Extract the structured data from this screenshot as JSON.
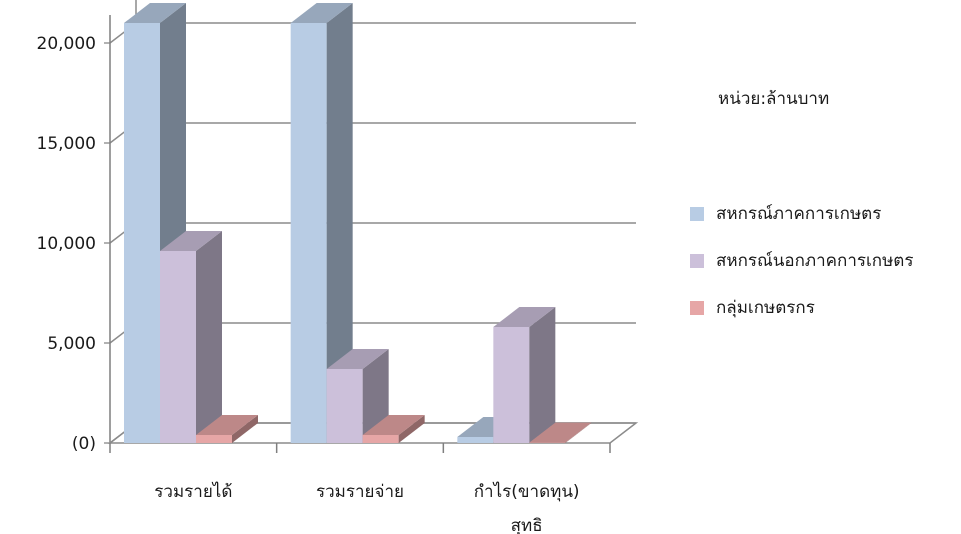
{
  "chart_data": {
    "type": "bar",
    "categories": [
      "รวมรายได้",
      "รวมรายจ่าย",
      "กำไร(ขาดทุน)\nสุทธิ"
    ],
    "series": [
      {
        "name": "สหกรณ์ภาคการเกษตร",
        "values": [
          21000,
          21000,
          300
        ],
        "color": "#b8cce4"
      },
      {
        "name": "สหกรณ์นอกภาคการเกษตร",
        "values": [
          9600,
          3700,
          5800
        ],
        "color": "#ccc0da"
      },
      {
        "name": "กลุ่มเกษตรกร",
        "values": [
          400,
          400,
          20
        ],
        "color": "#e6a6a6"
      }
    ],
    "y_ticks": [
      "(0)",
      "5,000",
      "10,000",
      "15,000",
      "20,000"
    ],
    "ylim": [
      0,
      21000
    ],
    "grid": true,
    "legend_position": "right",
    "unit_label": "หน่วย:ล้านบาท",
    "title": "",
    "xlabel": "",
    "ylabel": ""
  }
}
